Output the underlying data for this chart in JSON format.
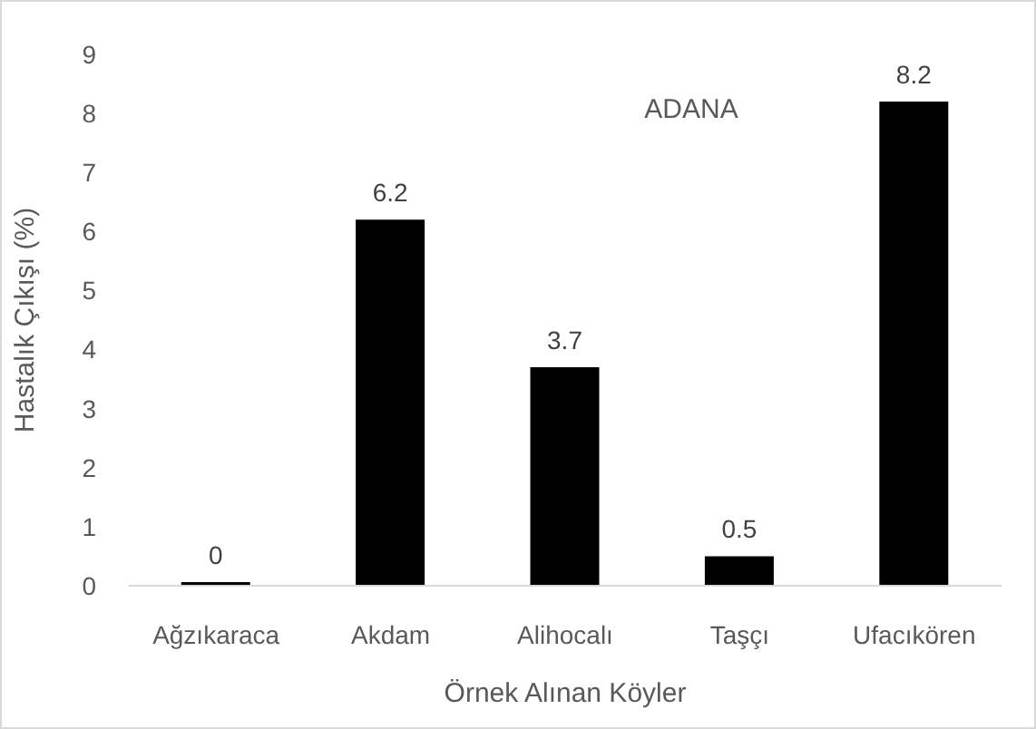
{
  "chart_data": {
    "type": "bar",
    "title": "ADANA",
    "xlabel": "Örnek Alınan Köyler",
    "ylabel": "Hastalık Çıkışı (%)",
    "categories": [
      "Ağzıkaraca",
      "Akdam",
      "Alihocalı",
      "Taşçı",
      "Ufacıkören"
    ],
    "values": [
      0,
      6.2,
      3.7,
      0.5,
      8.2
    ],
    "color": "#000000",
    "ylim": [
      0,
      9
    ],
    "yticks": [
      0,
      1,
      2,
      3,
      4,
      5,
      6,
      7,
      8,
      9
    ],
    "grid": false,
    "data_labels": true
  }
}
